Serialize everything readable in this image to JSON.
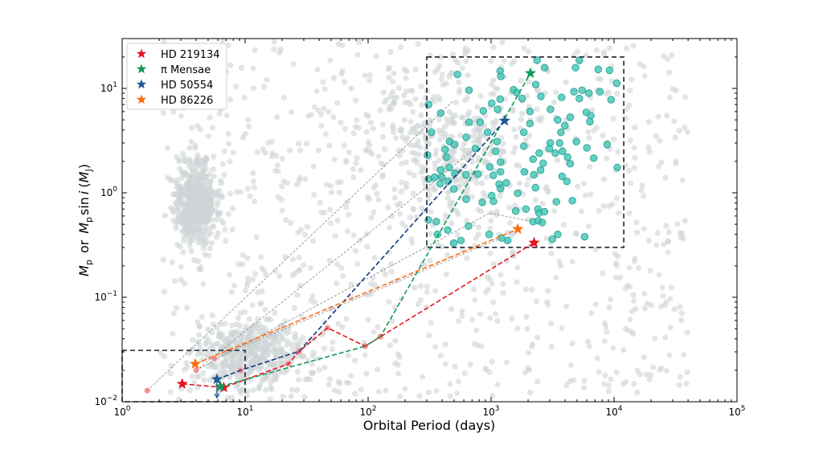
{
  "chart_data": {
    "type": "scatter",
    "xlabel": "Orbital Period (days)",
    "ylabel": "M_p or M_p sin i (M_J)",
    "ylabel_parts": {
      "a": "M",
      "a_sub": "p",
      "or": "or",
      "b": "M",
      "b_sub": "p",
      "sin": "sin",
      "i": "i",
      "unit": "M",
      "unit_sub": "J"
    },
    "xscale": "log",
    "yscale": "log",
    "xlim": [
      1,
      100000
    ],
    "ylim": [
      0.01,
      30
    ],
    "x_ticks": [
      {
        "value": 1,
        "label": "10",
        "exp": "0"
      },
      {
        "value": 10,
        "label": "10",
        "exp": "1"
      },
      {
        "value": 100,
        "label": "10",
        "exp": "2"
      },
      {
        "value": 1000,
        "label": "10",
        "exp": "3"
      },
      {
        "value": 10000,
        "label": "10",
        "exp": "4"
      },
      {
        "value": 100000,
        "label": "10",
        "exp": "5"
      }
    ],
    "y_ticks": [
      {
        "value": 0.01,
        "label": "10",
        "exp": "−2"
      },
      {
        "value": 0.1,
        "label": "10",
        "exp": "−1"
      },
      {
        "value": 1,
        "label": "10",
        "exp": "0"
      },
      {
        "value": 10,
        "label": "10",
        "exp": "1"
      }
    ],
    "grid": false,
    "legend_position": "top-left",
    "colors": {
      "background_population": "#cfd3d6",
      "highlight_population": "#40c4b4",
      "highlight_edge": "#1f9c8e",
      "link_gray": "#9a9a9a",
      "pink": "#f08080",
      "box": "#1b2433"
    },
    "boxes": [
      {
        "x": [
          300,
          12000
        ],
        "y": [
          0.3,
          20
        ]
      },
      {
        "x": [
          1,
          10
        ],
        "y": [
          0.01,
          0.031
        ]
      }
    ],
    "series": [
      {
        "name": "HD 219134",
        "color": "#e8141c",
        "marker": "star",
        "stars": [
          [
            3.08,
            0.0148
          ],
          [
            6.7,
            0.0137
          ],
          [
            2240,
            0.333
          ]
        ],
        "path": [
          [
            3.08,
            0.0148
          ],
          [
            6.7,
            0.0137
          ],
          [
            22.4,
            0.023
          ],
          [
            27.6,
            0.0305
          ],
          [
            46.8,
            0.051
          ],
          [
            94.7,
            0.034
          ],
          [
            126,
            0.042
          ],
          [
            2240,
            0.333
          ]
        ]
      },
      {
        "name": "π Mensae",
        "color": "#12995a",
        "marker": "star",
        "stars": [
          [
            6.3,
            0.014
          ],
          [
            2090,
            14
          ]
        ],
        "path": [
          [
            6.3,
            0.014
          ],
          [
            94.7,
            0.034
          ],
          [
            126,
            0.042
          ],
          [
            2090,
            14
          ]
        ]
      },
      {
        "name": "HD 50554",
        "color": "#1f5c99",
        "line_color": "#123a80",
        "marker": "star",
        "stars": [
          [
            5.9,
            0.0164
          ],
          [
            1290,
            4.9
          ]
        ],
        "upper_limit": [
          5.9,
          0.0164
        ],
        "path": [
          [
            5.9,
            0.0164
          ],
          [
            9.2,
            0.02
          ],
          [
            27.6,
            0.0305
          ],
          [
            1290,
            4.9
          ]
        ]
      },
      {
        "name": "HD 86226",
        "color": "#ff6a10",
        "marker": "star",
        "stars": [
          [
            3.93,
            0.023
          ],
          [
            1650,
            0.45
          ]
        ],
        "path": [
          [
            3.93,
            0.023
          ],
          [
            1650,
            0.45
          ]
        ]
      }
    ],
    "pink_points": [
      [
        1.6,
        0.0128
      ],
      [
        4.0,
        0.02
      ],
      [
        5.6,
        0.026
      ],
      [
        9.2,
        0.02
      ],
      [
        22.4,
        0.023
      ],
      [
        27.6,
        0.0305
      ],
      [
        46.8,
        0.051
      ],
      [
        94.7,
        0.034
      ],
      [
        126,
        0.042
      ]
    ],
    "gray_links": [
      [
        [
          1.6,
          0.0128
        ],
        [
          487,
          7.5
        ]
      ],
      [
        [
          4.0,
          0.02
        ],
        [
          741,
          2.65
        ]
      ],
      [
        [
          4.0,
          0.02
        ],
        [
          971,
          0.64
        ]
      ],
      [
        [
          5.6,
          0.026
        ],
        [
          1216,
          0.37
        ]
      ],
      [
        [
          971,
          0.64
        ],
        [
          2198,
          0.53
        ]
      ]
    ],
    "highlight_points": [
      [
        533,
        13.6
      ],
      [
        1186,
        14.7
      ],
      [
        1200,
        13.0
      ],
      [
        2366,
        18.6
      ],
      [
        2722,
        15.8
      ],
      [
        5224,
        18.6
      ],
      [
        4864,
        15.8
      ],
      [
        7447,
        15.2
      ],
      [
        9183,
        14.9
      ],
      [
        10520,
        11.2
      ],
      [
        2307,
        10.9
      ],
      [
        661,
        9.6
      ],
      [
        1524,
        9.7
      ],
      [
        1618,
        9.1
      ],
      [
        1790,
        8.0
      ],
      [
        2541,
        8.4
      ],
      [
        3750,
        8.2
      ],
      [
        4721,
        9.3
      ],
      [
        5495,
        9.6
      ],
      [
        6252,
        9.0
      ],
      [
        7674,
        9.3
      ],
      [
        5224,
        8.0
      ],
      [
        9462,
        7.8
      ],
      [
        310,
        7.0
      ],
      [
        389,
        5.8
      ],
      [
        1012,
        7.2
      ],
      [
        1186,
        7.9
      ],
      [
        865,
        6.1
      ],
      [
        1130,
        6.3
      ],
      [
        2070,
        6.0
      ],
      [
        3041,
        6.3
      ],
      [
        5943,
        5.9
      ],
      [
        6471,
        5.5
      ],
      [
        661,
        4.75
      ],
      [
        815,
        4.75
      ],
      [
        2070,
        4.6
      ],
      [
        3483,
        5.0
      ],
      [
        4406,
        5.3
      ],
      [
        6353,
        4.8
      ],
      [
        3981,
        4.4
      ],
      [
        328,
        3.8
      ],
      [
        937,
        3.8
      ],
      [
        1845,
        3.8
      ],
      [
        3698,
        3.8
      ],
      [
        628,
        3.4
      ],
      [
        460,
        3.1
      ],
      [
        504,
        2.9
      ],
      [
        1117,
        3.1
      ],
      [
        4943,
        3.1
      ],
      [
        1845,
        2.8
      ],
      [
        3027,
        3.0
      ],
      [
        3606,
        3.0
      ],
      [
        8790,
        2.9
      ],
      [
        423,
        2.6
      ],
      [
        745,
        2.65
      ],
      [
        2979,
        2.65
      ],
      [
        6012,
        2.7
      ],
      [
        304,
        2.3
      ],
      [
        434,
        2.2
      ],
      [
        1089,
        2.5
      ],
      [
        2466,
        2.4
      ],
      [
        3327,
        2.4
      ],
      [
        3811,
        2.5
      ],
      [
        4188,
        2.2
      ],
      [
        2198,
        2.1
      ],
      [
        6839,
        2.15
      ],
      [
        1194,
        1.97
      ],
      [
        2655,
        1.92
      ],
      [
        4406,
        1.9
      ],
      [
        10620,
        1.75
      ],
      [
        389,
        1.65
      ],
      [
        458,
        1.75
      ],
      [
        977,
        1.77
      ],
      [
        2529,
        1.65
      ],
      [
        1862,
        1.59
      ],
      [
        348,
        1.41
      ],
      [
        398,
        1.42
      ],
      [
        507,
        1.54
      ],
      [
        625,
        1.49
      ],
      [
        783,
        1.51
      ],
      [
        1042,
        1.47
      ],
      [
        1194,
        1.59
      ],
      [
        2228,
        1.49
      ],
      [
        3776,
        1.44
      ],
      [
        310,
        1.36
      ],
      [
        385,
        1.22
      ],
      [
        447,
        1.29
      ],
      [
        497,
        1.09
      ],
      [
        1164,
        1.21
      ],
      [
        1330,
        1.25
      ],
      [
        1194,
        1.1
      ],
      [
        4130,
        1.29
      ],
      [
        2296,
        1.12
      ],
      [
        1644,
        0.99
      ],
      [
        628,
        0.87
      ],
      [
        849,
        0.81
      ],
      [
        1012,
        0.94
      ],
      [
        1047,
        0.83
      ],
      [
        3396,
        0.82
      ],
      [
        4581,
        0.84
      ],
      [
        1585,
        0.67
      ],
      [
        1919,
        0.7
      ],
      [
        2404,
        0.7
      ],
      [
        2455,
        0.64
      ],
      [
        2722,
        0.66
      ],
      [
        309,
        0.55
      ],
      [
        359,
        0.53
      ],
      [
        2198,
        0.53
      ],
      [
        2427,
        0.54
      ],
      [
        2606,
        0.52
      ],
      [
        655,
        0.48
      ],
      [
        443,
        0.44
      ],
      [
        366,
        0.4
      ],
      [
        966,
        0.4
      ],
      [
        1216,
        0.37
      ],
      [
        1365,
        0.35
      ],
      [
        569,
        0.35
      ],
      [
        497,
        0.33
      ],
      [
        3148,
        0.36
      ],
      [
        3483,
        0.4
      ],
      [
        5768,
        0.38
      ]
    ]
  }
}
